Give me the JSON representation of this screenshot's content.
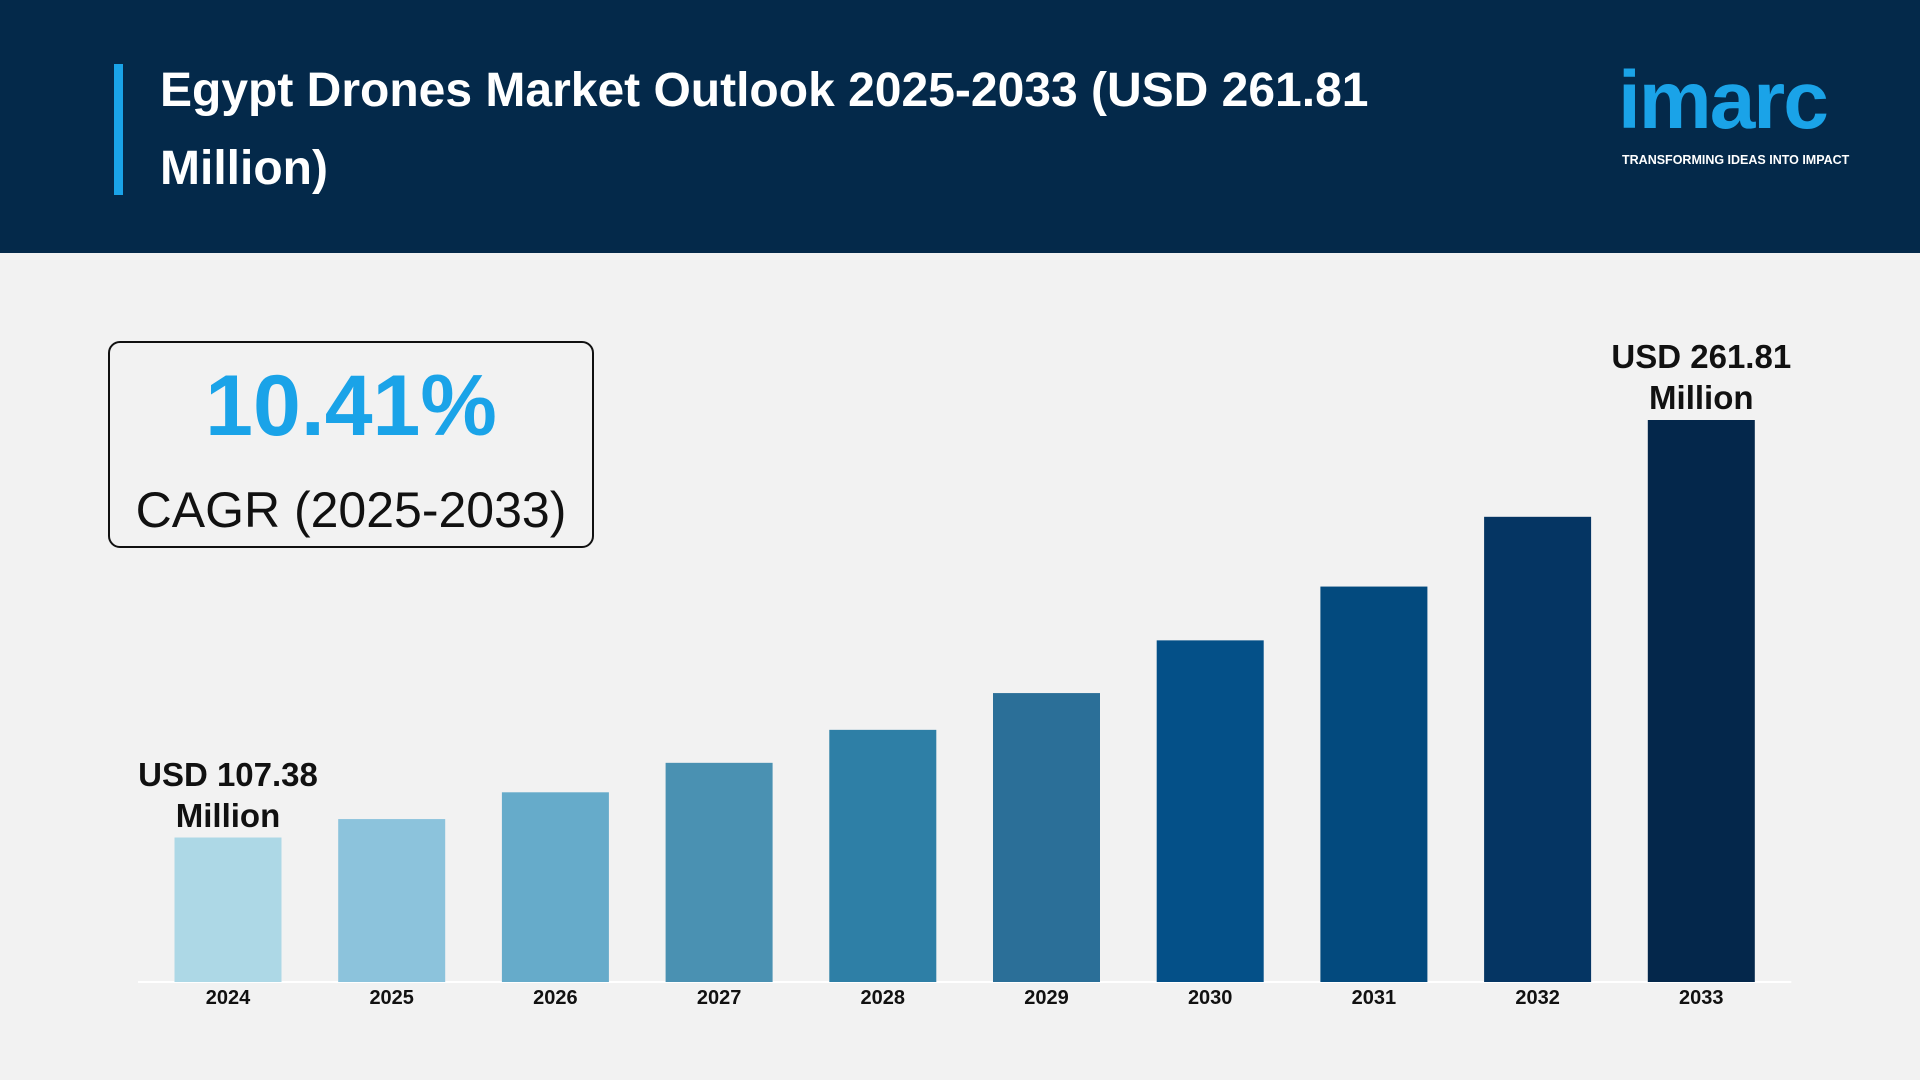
{
  "chart_data": {
    "type": "bar",
    "title": "Egypt Drones Market Outlook 2025-2033 (USD 261.81 Million)",
    "categories": [
      "2024",
      "2025",
      "2026",
      "2027",
      "2028",
      "2029",
      "2030",
      "2031",
      "2032",
      "2033"
    ],
    "values": [
      107.38,
      114.2,
      124.1,
      135.0,
      147.2,
      160.8,
      180.3,
      200.2,
      226.0,
      261.81
    ],
    "value_labels": [
      "USD 107.38 Million",
      null,
      null,
      null,
      null,
      null,
      null,
      null,
      null,
      "USD 261.81 Million"
    ],
    "colors": [
      "#add8e6",
      "#8cc3dc",
      "#66abca",
      "#4a91b2",
      "#2e7fa6",
      "#2b6f98",
      "#045088",
      "#034a7e",
      "#053563",
      "#04274b"
    ],
    "cagr": {
      "value": "10.41%",
      "label": "CAGR (2025-2033)"
    }
  },
  "logo": {
    "name": "imarc",
    "tagline": "TRANSFORMING IDEAS INTO IMPACT"
  }
}
